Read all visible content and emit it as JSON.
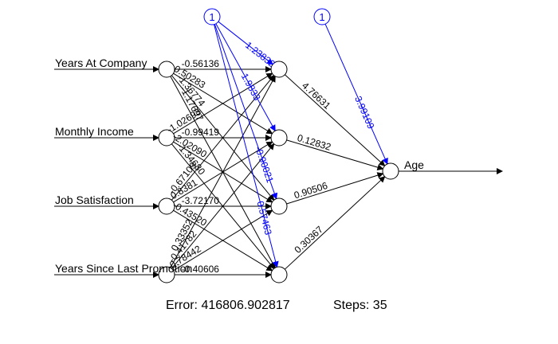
{
  "inputs": [
    {
      "label": "Years At Company"
    },
    {
      "label": "Monthly Income"
    },
    {
      "label": "Job Satisfaction"
    },
    {
      "label": "Years Since Last Promotion"
    }
  ],
  "output": {
    "label": "Age"
  },
  "bias_label": "1",
  "input_weight_labels": [
    [
      "-0.56136",
      "0.50283",
      "-1.36774",
      "-1.17697"
    ],
    [
      "-1.02693",
      "-0.99419",
      "-2.02090",
      "-1.34680"
    ],
    [
      "-0.67109",
      "0.8381",
      "-3.72170",
      "-0.43520"
    ],
    [
      "0.33352",
      "-0.41782",
      "-0.78442",
      "-0.40606"
    ]
  ],
  "hidden_bias_labels": [
    "1.23832",
    "1.9833",
    "-0.90021",
    "0.57463"
  ],
  "hidden_to_output_labels": [
    "4.76631",
    "0.12832",
    "0.90506",
    "0.30367"
  ],
  "output_bias_label": "3.99109",
  "colors": {
    "weights": "#000000",
    "bias": "#0000ff"
  },
  "footer": {
    "error_text": "Error: 416806.902817",
    "steps_text": "Steps: 35"
  }
}
